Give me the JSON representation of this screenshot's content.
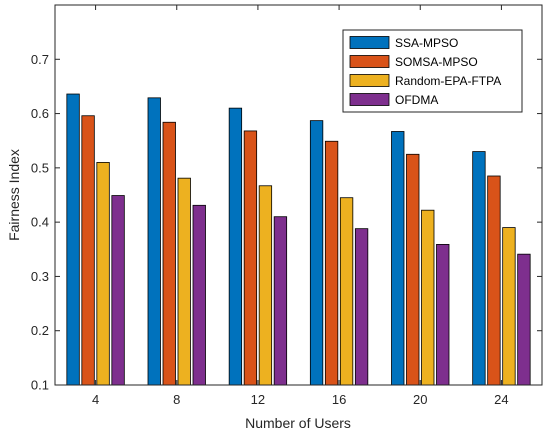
{
  "chart_data": {
    "type": "bar",
    "title": "",
    "xlabel": "Number of Users",
    "ylabel": "Fairness Index",
    "categories": [
      "4",
      "8",
      "12",
      "16",
      "20",
      "24"
    ],
    "ylim": [
      0.1,
      0.8
    ],
    "yticks": [
      "0.1",
      "0.2",
      "0.3",
      "0.4",
      "0.5",
      "0.6",
      "0.7"
    ],
    "grid": false,
    "legend_position": "top-right",
    "series": [
      {
        "name": "SSA-MPSO",
        "color": "#0072BD",
        "values": [
          0.636,
          0.629,
          0.61,
          0.587,
          0.567,
          0.53
        ]
      },
      {
        "name": "SOMSA-MPSO",
        "color": "#D95319",
        "values": [
          0.596,
          0.584,
          0.568,
          0.549,
          0.525,
          0.485
        ]
      },
      {
        "name": "Random-EPA-FTPA",
        "color": "#EDB120",
        "values": [
          0.51,
          0.481,
          0.467,
          0.445,
          0.422,
          0.39
        ]
      },
      {
        "name": "OFDMA",
        "color": "#7E2F8E",
        "values": [
          0.449,
          0.431,
          0.41,
          0.388,
          0.359,
          0.341
        ]
      }
    ]
  }
}
